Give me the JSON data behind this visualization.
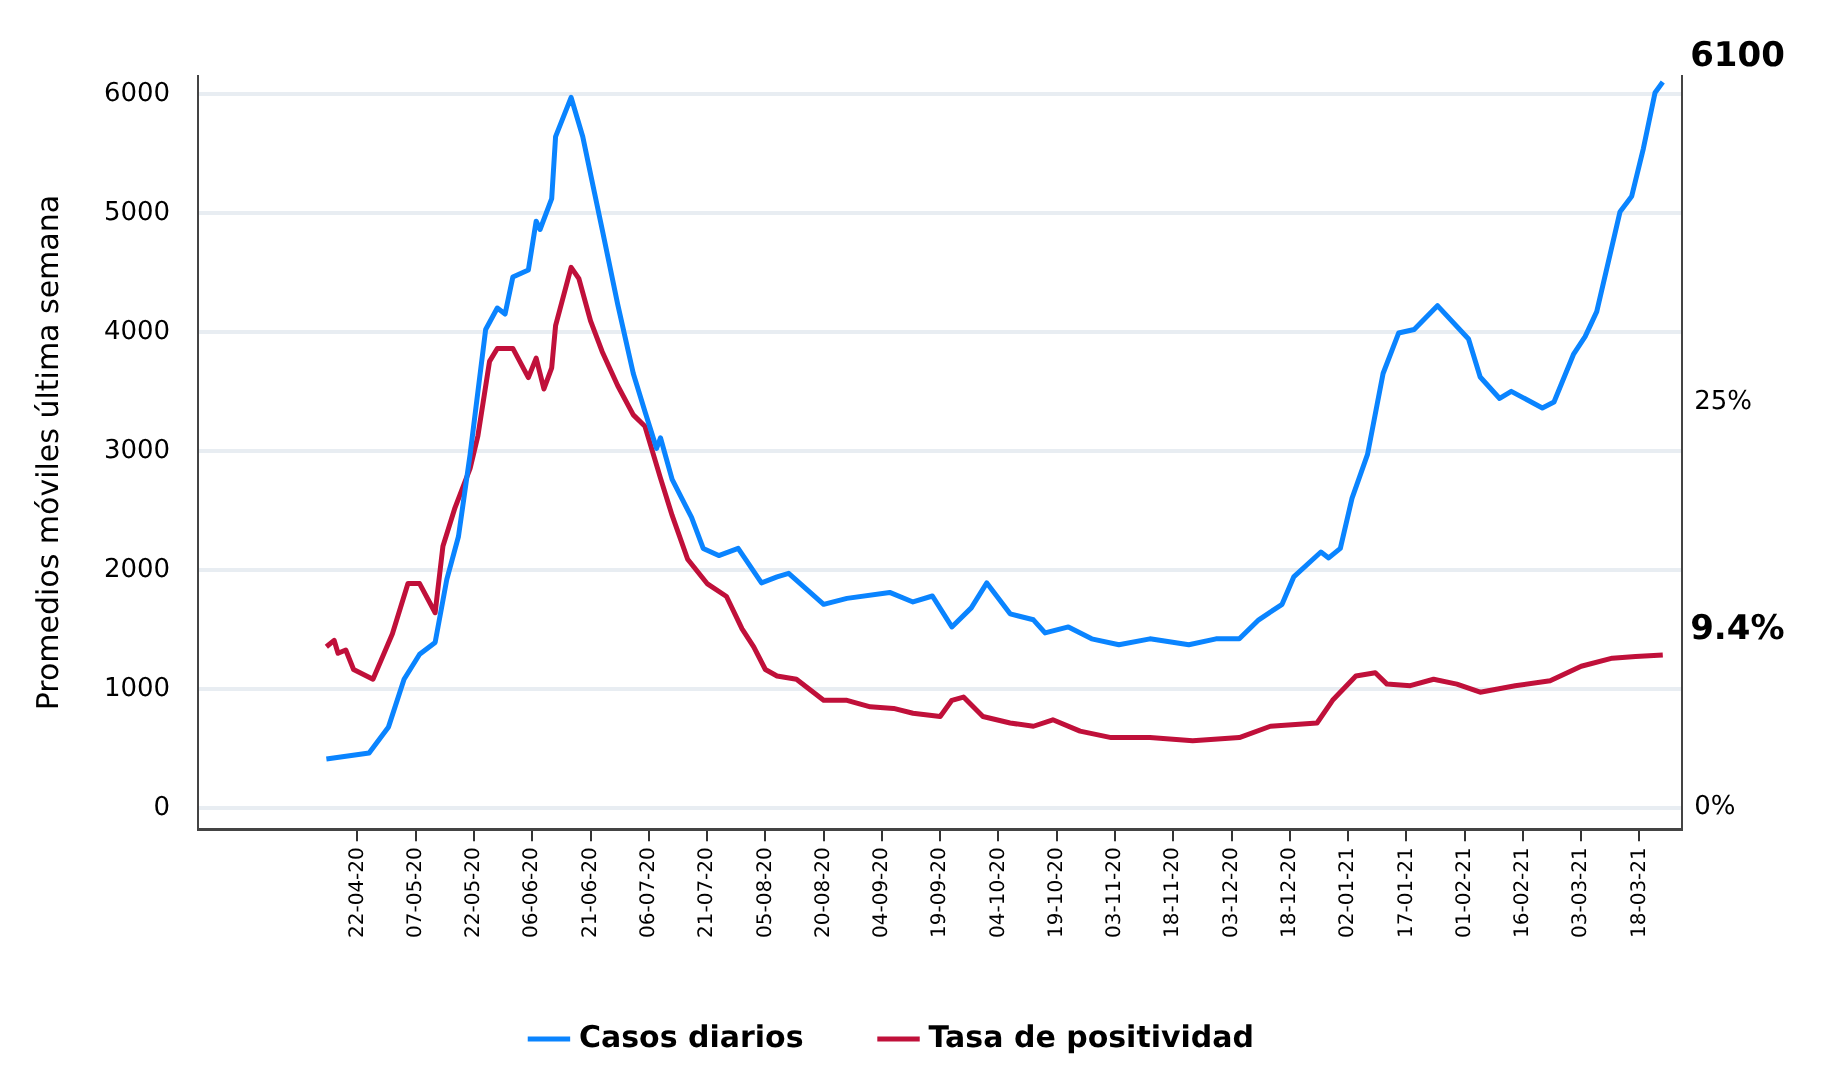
{
  "chart_data": {
    "type": "line",
    "ylabel": "Promedios móviles última semana",
    "grid": "y",
    "legend": "bottom",
    "xlim": [
      "2020-03-12",
      "2021-03-29"
    ],
    "xticks": [
      {
        "value": "2020-04-22",
        "label": "22-04-20"
      },
      {
        "value": "2020-05-07",
        "label": "07-05-20"
      },
      {
        "value": "2020-05-22",
        "label": "22-05-20"
      },
      {
        "value": "2020-06-06",
        "label": "06-06-20"
      },
      {
        "value": "2020-06-21",
        "label": "21-06-20"
      },
      {
        "value": "2020-07-06",
        "label": "06-07-20"
      },
      {
        "value": "2020-07-21",
        "label": "21-07-20"
      },
      {
        "value": "2020-08-05",
        "label": "05-08-20"
      },
      {
        "value": "2020-08-20",
        "label": "20-08-20"
      },
      {
        "value": "2020-09-04",
        "label": "04-09-20"
      },
      {
        "value": "2020-09-19",
        "label": "19-09-20"
      },
      {
        "value": "2020-10-04",
        "label": "04-10-20"
      },
      {
        "value": "2020-10-19",
        "label": "19-10-20"
      },
      {
        "value": "2020-11-03",
        "label": "03-11-20"
      },
      {
        "value": "2020-11-18",
        "label": "18-11-20"
      },
      {
        "value": "2020-12-03",
        "label": "03-12-20"
      },
      {
        "value": "2020-12-18",
        "label": "18-12-20"
      },
      {
        "value": "2021-01-02",
        "label": "02-01-21"
      },
      {
        "value": "2021-01-17",
        "label": "17-01-21"
      },
      {
        "value": "2021-02-01",
        "label": "01-02-21"
      },
      {
        "value": "2021-02-16",
        "label": "16-02-21"
      },
      {
        "value": "2021-03-03",
        "label": "03-03-21"
      },
      {
        "value": "2021-03-18",
        "label": "18-03-21"
      }
    ],
    "ylim": [
      -180,
      6150
    ],
    "yticks": [
      0,
      1000,
      2000,
      3000,
      4000,
      5000,
      6000
    ],
    "y2lim": [
      -1.35,
      45.1
    ],
    "y2ticks": [
      {
        "value": 0,
        "label": "0%"
      },
      {
        "value": 25,
        "label": "25%"
      }
    ],
    "series": [
      {
        "name": "Casos diarios",
        "color": "#0a84ff",
        "x": [
          "2020-04-14",
          "2020-04-25",
          "2020-04-30",
          "2020-05-04",
          "2020-05-08",
          "2020-05-12",
          "2020-05-15",
          "2020-05-18",
          "2020-05-21",
          "2020-05-25",
          "2020-05-28",
          "2020-05-30",
          "2020-06-01",
          "2020-06-05",
          "2020-06-07",
          "2020-06-08",
          "2020-06-11",
          "2020-06-12",
          "2020-06-16",
          "2020-06-19",
          "2020-06-22",
          "2020-06-24",
          "2020-06-28",
          "2020-07-02",
          "2020-07-05",
          "2020-07-08",
          "2020-07-09",
          "2020-07-12",
          "2020-07-17",
          "2020-07-20",
          "2020-07-24",
          "2020-07-29",
          "2020-08-04",
          "2020-08-08",
          "2020-08-11",
          "2020-08-20",
          "2020-08-26",
          "2020-09-06",
          "2020-09-12",
          "2020-09-17",
          "2020-09-22",
          "2020-09-27",
          "2020-10-01",
          "2020-10-07",
          "2020-10-13",
          "2020-10-16",
          "2020-10-22",
          "2020-10-28",
          "2020-11-04",
          "2020-11-12",
          "2020-11-22",
          "2020-11-29",
          "2020-12-05",
          "2020-12-10",
          "2020-12-16",
          "2020-12-19",
          "2020-12-26",
          "2020-12-28",
          "2020-12-31",
          "2021-01-03",
          "2021-01-07",
          "2021-01-11",
          "2021-01-15",
          "2021-01-19",
          "2021-01-25",
          "2021-02-02",
          "2021-02-05",
          "2021-02-10",
          "2021-02-13",
          "2021-02-21",
          "2021-02-24",
          "2021-03-01",
          "2021-03-04",
          "2021-03-07",
          "2021-03-13",
          "2021-03-16",
          "2021-03-19",
          "2021-03-22",
          "2021-03-24"
        ],
        "values": [
          410,
          460,
          680,
          1080,
          1290,
          1390,
          1920,
          2280,
          2970,
          4020,
          4200,
          4150,
          4460,
          4520,
          4930,
          4860,
          5120,
          5640,
          5970,
          5640,
          5170,
          4860,
          4230,
          3650,
          3330,
          3020,
          3110,
          2760,
          2440,
          2180,
          2120,
          2180,
          1890,
          1940,
          1970,
          1710,
          1760,
          1810,
          1730,
          1780,
          1520,
          1680,
          1890,
          1630,
          1580,
          1470,
          1520,
          1420,
          1370,
          1420,
          1370,
          1420,
          1420,
          1580,
          1710,
          1940,
          2150,
          2100,
          2180,
          2600,
          2970,
          3650,
          3990,
          4020,
          4220,
          3940,
          3620,
          3440,
          3500,
          3360,
          3410,
          3810,
          3960,
          4170,
          5010,
          5140,
          5540,
          6010,
          6100
        ],
        "value_labels": [
          null,
          null,
          null,
          null,
          null,
          null,
          null,
          null,
          null,
          null,
          null,
          null,
          null,
          null,
          null,
          null,
          null,
          null,
          null,
          null,
          null,
          null,
          null,
          null,
          null,
          null,
          null,
          null,
          null,
          null,
          null,
          null,
          null,
          null,
          null,
          null,
          null,
          null,
          null,
          null,
          null,
          null,
          null,
          null,
          null,
          null,
          null,
          null,
          null,
          null,
          null,
          null,
          null,
          null,
          null,
          null,
          null,
          null,
          null,
          null,
          null,
          null,
          null,
          null,
          null,
          null,
          null,
          null,
          null,
          null,
          null,
          null,
          null,
          null,
          null,
          null,
          null,
          null,
          "6100"
        ]
      },
      {
        "name": "Tasa de positividad",
        "color": "#c0103a",
        "axis": "y2",
        "x": [
          "2020-04-14",
          "2020-04-16",
          "2020-04-17",
          "2020-04-19",
          "2020-04-21",
          "2020-04-26",
          "2020-05-01",
          "2020-05-05",
          "2020-05-08",
          "2020-05-12",
          "2020-05-14",
          "2020-05-17",
          "2020-05-21",
          "2020-05-23",
          "2020-05-26",
          "2020-05-28",
          "2020-06-01",
          "2020-06-05",
          "2020-06-07",
          "2020-06-09",
          "2020-06-11",
          "2020-06-12",
          "2020-06-16",
          "2020-06-18",
          "2020-06-21",
          "2020-06-24",
          "2020-06-28",
          "2020-07-02",
          "2020-07-05",
          "2020-07-09",
          "2020-07-12",
          "2020-07-16",
          "2020-07-21",
          "2020-07-26",
          "2020-07-30",
          "2020-08-02",
          "2020-08-05",
          "2020-08-08",
          "2020-08-13",
          "2020-08-20",
          "2020-08-26",
          "2020-09-01",
          "2020-09-07",
          "2020-09-12",
          "2020-09-19",
          "2020-09-22",
          "2020-09-25",
          "2020-09-30",
          "2020-10-07",
          "2020-10-13",
          "2020-10-18",
          "2020-10-25",
          "2020-11-02",
          "2020-11-12",
          "2020-11-23",
          "2020-12-05",
          "2020-12-13",
          "2020-12-25",
          "2020-12-29",
          "2021-01-04",
          "2021-01-09",
          "2021-01-12",
          "2021-01-18",
          "2021-01-24",
          "2021-01-30",
          "2021-02-05",
          "2021-02-14",
          "2021-02-23",
          "2021-03-03",
          "2021-03-11",
          "2021-03-17",
          "2021-03-24"
        ],
        "values": [
          9.9,
          10.3,
          9.5,
          9.7,
          8.5,
          7.9,
          10.7,
          13.8,
          13.8,
          12.0,
          16.1,
          18.4,
          20.9,
          22.9,
          27.5,
          28.3,
          28.3,
          26.5,
          27.7,
          25.8,
          27.1,
          29.7,
          33.3,
          32.6,
          30.0,
          28.1,
          26.0,
          24.2,
          23.5,
          20.3,
          18.0,
          15.3,
          13.8,
          13.0,
          11.0,
          9.9,
          8.5,
          8.1,
          7.9,
          6.6,
          6.6,
          6.2,
          6.1,
          5.8,
          5.6,
          6.6,
          6.8,
          5.6,
          5.2,
          5.0,
          5.4,
          4.7,
          4.3,
          4.3,
          4.1,
          4.3,
          5.0,
          5.2,
          6.6,
          8.1,
          8.3,
          7.6,
          7.5,
          7.9,
          7.6,
          7.1,
          7.5,
          7.8,
          8.7,
          9.2,
          9.3,
          9.4
        ],
        "value_labels": [
          null,
          null,
          null,
          null,
          null,
          null,
          null,
          null,
          null,
          null,
          null,
          null,
          null,
          null,
          null,
          null,
          null,
          null,
          null,
          null,
          null,
          null,
          null,
          null,
          null,
          null,
          null,
          null,
          null,
          null,
          null,
          null,
          null,
          null,
          null,
          null,
          null,
          null,
          null,
          null,
          null,
          null,
          null,
          null,
          null,
          null,
          null,
          null,
          null,
          null,
          null,
          null,
          null,
          null,
          null,
          null,
          null,
          null,
          null,
          null,
          null,
          null,
          null,
          null,
          null,
          null,
          null,
          null,
          null,
          null,
          null,
          "9.4%"
        ]
      }
    ]
  }
}
